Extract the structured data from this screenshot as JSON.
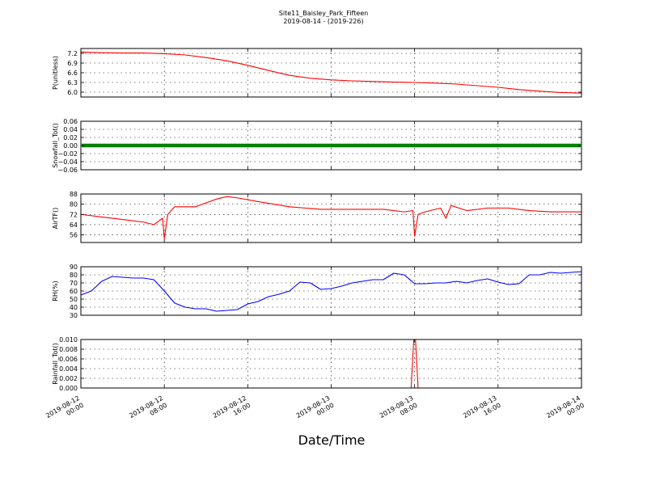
{
  "figure": {
    "title": "Site11_Baisley_Park_Fifteen",
    "subtitle": "2019-08-14 - (2019-226)",
    "xlabel": "Date/Time"
  },
  "x_axis": {
    "range": [
      "2019-08-12 00:00",
      "2019-08-14 00:00"
    ],
    "tick_labels": [
      [
        "2019-08-12",
        "00:00"
      ],
      [
        "2019-08-12",
        "08:00"
      ],
      [
        "2019-08-12",
        "16:00"
      ],
      [
        "2019-08-13",
        "00:00"
      ],
      [
        "2019-08-13",
        "08:00"
      ],
      [
        "2019-08-13",
        "16:00"
      ],
      [
        "2019-08-14",
        "00:00"
      ]
    ]
  },
  "chart_data": [
    {
      "type": "line",
      "ylabel": "P(unitless)",
      "ylim": [
        5.85,
        7.35
      ],
      "yticks": [
        "6.0",
        "6.3",
        "6.6",
        "6.9",
        "7.2"
      ],
      "grid": true,
      "color": "#ff0000",
      "series": [
        {
          "x": [
            "2019-08-12 00:00",
            "2019-08-12 02:00",
            "2019-08-12 04:00",
            "2019-08-12 06:00",
            "2019-08-12 08:00",
            "2019-08-12 10:00",
            "2019-08-12 12:00",
            "2019-08-12 14:00",
            "2019-08-12 16:00",
            "2019-08-12 18:00",
            "2019-08-12 20:00",
            "2019-08-12 22:00",
            "2019-08-13 00:00",
            "2019-08-13 02:00",
            "2019-08-13 04:00",
            "2019-08-13 06:00",
            "2019-08-13 08:00",
            "2019-08-13 10:00",
            "2019-08-13 12:00",
            "2019-08-13 14:00",
            "2019-08-13 16:00",
            "2019-08-13 18:00",
            "2019-08-13 20:00",
            "2019-08-13 22:00",
            "2019-08-14 00:00"
          ],
          "values": [
            7.24,
            7.22,
            7.21,
            7.21,
            7.19,
            7.15,
            7.07,
            6.97,
            6.83,
            6.67,
            6.52,
            6.43,
            6.38,
            6.35,
            6.33,
            6.31,
            6.3,
            6.28,
            6.25,
            6.2,
            6.15,
            6.08,
            6.03,
            5.99,
            5.97
          ]
        }
      ]
    },
    {
      "type": "scatter",
      "ylabel": "Snowfall_Tot()",
      "ylim": [
        -0.06,
        0.06
      ],
      "yticks": [
        "−0.06",
        "−0.04",
        "−0.02",
        "0.00",
        "0.02",
        "0.04",
        "0.06"
      ],
      "grid": true,
      "color": "#008000",
      "series": [
        {
          "x_range": [
            "2019-08-12 00:00",
            "2019-08-14 00:00"
          ],
          "constant_value": 0.0
        }
      ]
    },
    {
      "type": "line",
      "ylabel": "AirTF()",
      "ylim": [
        50,
        88
      ],
      "yticks": [
        "56",
        "64",
        "72",
        "80",
        "88"
      ],
      "grid": true,
      "color": "#ff0000",
      "series": [
        {
          "x": [
            "2019-08-12 00:00",
            "2019-08-12 02:00",
            "2019-08-12 04:00",
            "2019-08-12 06:00",
            "2019-08-12 07:00",
            "2019-08-12 07:50",
            "2019-08-12 08:00",
            "2019-08-12 08:20",
            "2019-08-12 09:00",
            "2019-08-12 11:00",
            "2019-08-12 13:00",
            "2019-08-12 14:00",
            "2019-08-12 15:00",
            "2019-08-12 17:00",
            "2019-08-12 20:00",
            "2019-08-12 23:00",
            "2019-08-13 02:00",
            "2019-08-13 05:00",
            "2019-08-13 07:00",
            "2019-08-13 07:50",
            "2019-08-13 08:00",
            "2019-08-13 08:20",
            "2019-08-13 09:00",
            "2019-08-13 10:30",
            "2019-08-13 11:00",
            "2019-08-13 11:30",
            "2019-08-13 13:00",
            "2019-08-13 15:00",
            "2019-08-13 17:00",
            "2019-08-13 19:00",
            "2019-08-13 21:00",
            "2019-08-14 00:00"
          ],
          "values": [
            72,
            70,
            68,
            66,
            64,
            69,
            53,
            72,
            78,
            78,
            84,
            86,
            85,
            82,
            78,
            76,
            76,
            76,
            74,
            75,
            55,
            72,
            74,
            77,
            69,
            79,
            75,
            77,
            77,
            75,
            74,
            74
          ]
        }
      ]
    },
    {
      "type": "line",
      "ylabel": "RH(%)",
      "ylim": [
        30,
        90
      ],
      "yticks": [
        "30",
        "40",
        "50",
        "60",
        "70",
        "80",
        "90"
      ],
      "grid": true,
      "color": "#0000ff",
      "series": [
        {
          "x": [
            "2019-08-12 00:00",
            "2019-08-12 01:00",
            "2019-08-12 02:00",
            "2019-08-12 03:00",
            "2019-08-12 04:00",
            "2019-08-12 05:00",
            "2019-08-12 06:00",
            "2019-08-12 07:00",
            "2019-08-12 08:00",
            "2019-08-12 09:00",
            "2019-08-12 10:00",
            "2019-08-12 11:00",
            "2019-08-12 12:00",
            "2019-08-12 13:00",
            "2019-08-12 14:00",
            "2019-08-12 15:00",
            "2019-08-12 16:00",
            "2019-08-12 17:00",
            "2019-08-12 18:00",
            "2019-08-12 19:00",
            "2019-08-12 20:00",
            "2019-08-12 21:00",
            "2019-08-12 22:00",
            "2019-08-12 23:00",
            "2019-08-13 00:00",
            "2019-08-13 01:00",
            "2019-08-13 02:00",
            "2019-08-13 03:00",
            "2019-08-13 04:00",
            "2019-08-13 05:00",
            "2019-08-13 06:00",
            "2019-08-13 07:00",
            "2019-08-13 08:00",
            "2019-08-13 09:00",
            "2019-08-13 10:00",
            "2019-08-13 11:00",
            "2019-08-13 12:00",
            "2019-08-13 13:00",
            "2019-08-13 14:00",
            "2019-08-13 15:00",
            "2019-08-13 16:00",
            "2019-08-13 17:00",
            "2019-08-13 18:00",
            "2019-08-13 19:00",
            "2019-08-13 20:00",
            "2019-08-13 21:00",
            "2019-08-13 22:00",
            "2019-08-13 23:00",
            "2019-08-14 00:00"
          ],
          "values": [
            55,
            60,
            72,
            78,
            77,
            76,
            76,
            74,
            60,
            45,
            40,
            38,
            38,
            35,
            36,
            37,
            44,
            47,
            53,
            56,
            60,
            71,
            70,
            62,
            63,
            66,
            70,
            72,
            74,
            74,
            82,
            80,
            69,
            69,
            70,
            70,
            72,
            70,
            73,
            75,
            71,
            68,
            69,
            80,
            80,
            83,
            82,
            83,
            84
          ]
        }
      ]
    },
    {
      "type": "line",
      "ylabel": "Rainfall_Tot()",
      "ylim": [
        0.0,
        0.01
      ],
      "yticks": [
        "0.000",
        "0.002",
        "0.004",
        "0.006",
        "0.008",
        "0.010"
      ],
      "grid": true,
      "color": "#ff0000",
      "series": [
        {
          "x": [
            "2019-08-12 00:00",
            "2019-08-13 07:40",
            "2019-08-13 07:55",
            "2019-08-13 08:05",
            "2019-08-13 08:20",
            "2019-08-14 00:00"
          ],
          "values": [
            0,
            0,
            0.01,
            0.01,
            0,
            0
          ]
        }
      ]
    }
  ]
}
